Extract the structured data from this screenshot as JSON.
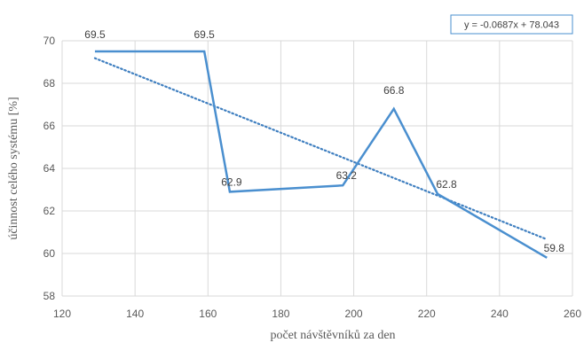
{
  "chart_data": {
    "type": "line",
    "xlabel": "počet návštěvníků za den",
    "ylabel": "účinnost celého systému [%]",
    "xlim": [
      120,
      260
    ],
    "ylim": [
      58,
      70
    ],
    "xticks": [
      120,
      140,
      160,
      180,
      200,
      220,
      240,
      260
    ],
    "yticks": [
      58,
      60,
      62,
      64,
      66,
      68,
      70
    ],
    "grid": true,
    "series": [
      {
        "x": [
          129,
          159,
          166,
          197,
          211,
          223,
          253
        ],
        "y": [
          69.5,
          69.5,
          62.9,
          63.2,
          66.8,
          62.8,
          59.8
        ],
        "labels": [
          "69.5",
          "69.5",
          "62.9",
          "63.2",
          "66.8",
          "62.8",
          "59.8"
        ],
        "color": "#4a8fcf"
      }
    ],
    "trendline": {
      "type": "linear",
      "slope": -0.0687,
      "intercept": 78.043,
      "equation": "y = -0.0687x + 78.043",
      "style": "dotted",
      "color": "#3f7fc0"
    }
  }
}
